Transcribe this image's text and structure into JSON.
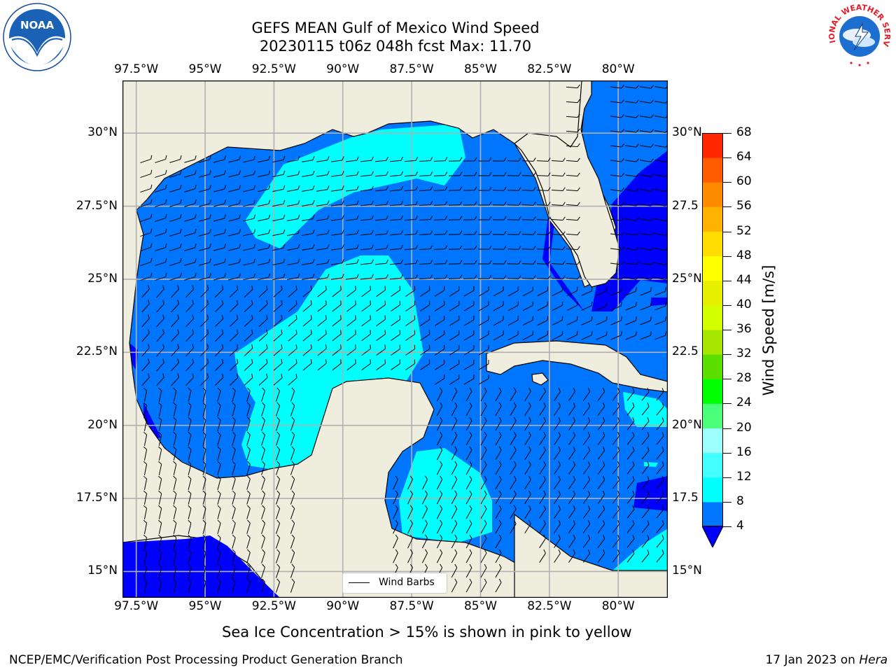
{
  "title": {
    "line1": "GEFS MEAN Gulf of Mexico Wind Speed",
    "line2": "20230115 t06z 048h fcst   Max: 11.70"
  },
  "map": {
    "lon_ticks": [
      "97.5°W",
      "95°W",
      "92.5°W",
      "90°W",
      "87.5°W",
      "85°W",
      "82.5°W",
      "80°W"
    ],
    "lat_ticks_left": [
      "30°N",
      "27.5°N",
      "25°N",
      "22.5°N",
      "20°N",
      "17.5°N",
      "15°N"
    ],
    "lat_ticks_right": [
      "30°N",
      "27.5",
      "25°N",
      "22.5",
      "20°N",
      "17.5",
      "15°N"
    ],
    "lon_range": [
      -98,
      -78.2
    ],
    "lat_range": [
      14.1,
      31.8
    ],
    "colors": {
      "land": "#efedde",
      "coast": "#000000",
      "grid": "#b0b0b0",
      "band_below_4": "#0000ff",
      "band_4_8": "#0076ff",
      "band_8_12": "#00fffd"
    }
  },
  "legend": {
    "label": "Wind Barbs"
  },
  "colorbar": {
    "title": "Wind Speed [m/s]",
    "levels": [
      "4",
      "8",
      "12",
      "16",
      "20",
      "24",
      "28",
      "32",
      "36",
      "40",
      "44",
      "48",
      "52",
      "56",
      "60",
      "64",
      "68"
    ],
    "colors": [
      "#0076ff",
      "#00fffd",
      "#43fffd",
      "#9dfffd",
      "#4bff7a",
      "#00ff00",
      "#5adf00",
      "#a6e600",
      "#d4ff00",
      "#e6f000",
      "#ffff00",
      "#ffdd00",
      "#ffb300",
      "#ff8b00",
      "#ff5c00",
      "#ff2600"
    ],
    "extend_color": "#0000ff"
  },
  "footer": {
    "note": "Sea Ice Concentration > 15% is shown in pink to yellow",
    "credit": "NCEP/EMC/Verification Post Processing Product Generation Branch",
    "date": "17 Jan 2023 on",
    "machine": "Hera"
  },
  "logos": {
    "noaa": "NOAA",
    "nws": "NATIONAL WEATHER SERVICE"
  }
}
